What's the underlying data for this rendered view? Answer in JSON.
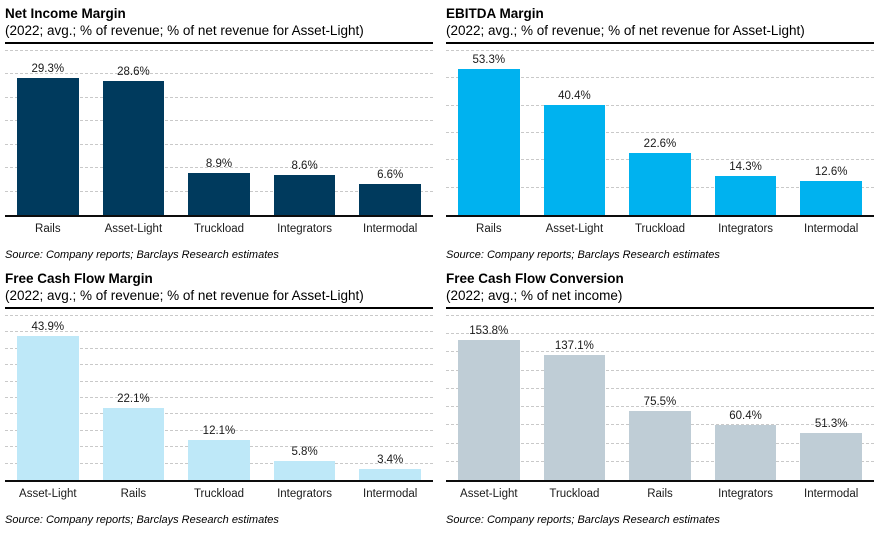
{
  "page": {
    "background_color": "#ffffff",
    "source_note": "Source: Company reports; Barclays Research estimates"
  },
  "colors": {
    "navy": "#003A5D",
    "cyan": "#00B2EF",
    "light_blue": "#BEE8F8",
    "gray_blue": "#BFCDD6",
    "gridline": "#c9c9c9",
    "axis": "#0d0d0d"
  },
  "chart_data": [
    {
      "type": "bar",
      "title": "Net Income Margin",
      "subtitle": "(2022; avg.; % of revenue; % of net revenue for Asset-Light)",
      "source": "Source: Company reports; Barclays Research estimates",
      "categories": [
        "Rails",
        "Asset-Light",
        "Truckload",
        "Integrators",
        "Intermodal"
      ],
      "values": [
        29.3,
        28.6,
        8.9,
        8.6,
        6.6
      ],
      "value_labels": [
        "29.3%",
        "28.6%",
        "8.9%",
        "8.6%",
        "6.6%"
      ],
      "xlabel": "",
      "ylabel": "",
      "ylim": [
        0,
        35
      ],
      "grid_step": 5,
      "grid": "dashed-horizontal",
      "legend": "none",
      "bar_color": "#003A5D"
    },
    {
      "type": "bar",
      "title": "EBITDA Margin",
      "subtitle": "(2022; avg.; % of revenue; % of net revenue for Asset-Light)",
      "source": "Source: Company reports; Barclays Research estimates",
      "categories": [
        "Rails",
        "Asset-Light",
        "Truckload",
        "Integrators",
        "Intermodal"
      ],
      "values": [
        53.3,
        40.4,
        22.6,
        14.3,
        12.6
      ],
      "value_labels": [
        "53.3%",
        "40.4%",
        "22.6%",
        "14.3%",
        "12.6%"
      ],
      "xlabel": "",
      "ylabel": "",
      "ylim": [
        0,
        60
      ],
      "grid_step": 10,
      "grid": "dashed-horizontal",
      "legend": "none",
      "bar_color": "#00B2EF"
    },
    {
      "type": "bar",
      "title": "Free Cash Flow Margin",
      "subtitle": "(2022; avg.; % of revenue; % of net revenue for Asset-Light)",
      "source": "Source: Company reports; Barclays Research estimates",
      "categories": [
        "Asset-Light",
        "Rails",
        "Truckload",
        "Integrators",
        "Intermodal"
      ],
      "values": [
        43.9,
        22.1,
        12.1,
        5.8,
        3.4
      ],
      "value_labels": [
        "43.9%",
        "22.1%",
        "12.1%",
        "5.8%",
        "3.4%"
      ],
      "xlabel": "",
      "ylabel": "",
      "ylim": [
        0,
        50
      ],
      "grid_step": 5,
      "grid": "dashed-horizontal",
      "legend": "none",
      "bar_color": "#BEE8F8"
    },
    {
      "type": "bar",
      "title": "Free Cash Flow Conversion",
      "subtitle": "(2022; avg.; % of net income)",
      "source": "Source: Company reports; Barclays Research estimates",
      "categories": [
        "Asset-Light",
        "Truckload",
        "Rails",
        "Integrators",
        "Intermodal"
      ],
      "values": [
        153.8,
        137.1,
        75.5,
        60.4,
        51.3
      ],
      "value_labels": [
        "153.8%",
        "137.1%",
        "75.5%",
        "60.4%",
        "51.3%"
      ],
      "xlabel": "",
      "ylabel": "",
      "ylim": [
        0,
        180
      ],
      "grid_step": 20,
      "grid": "dashed-horizontal",
      "legend": "none",
      "bar_color": "#BFCDD6"
    }
  ]
}
